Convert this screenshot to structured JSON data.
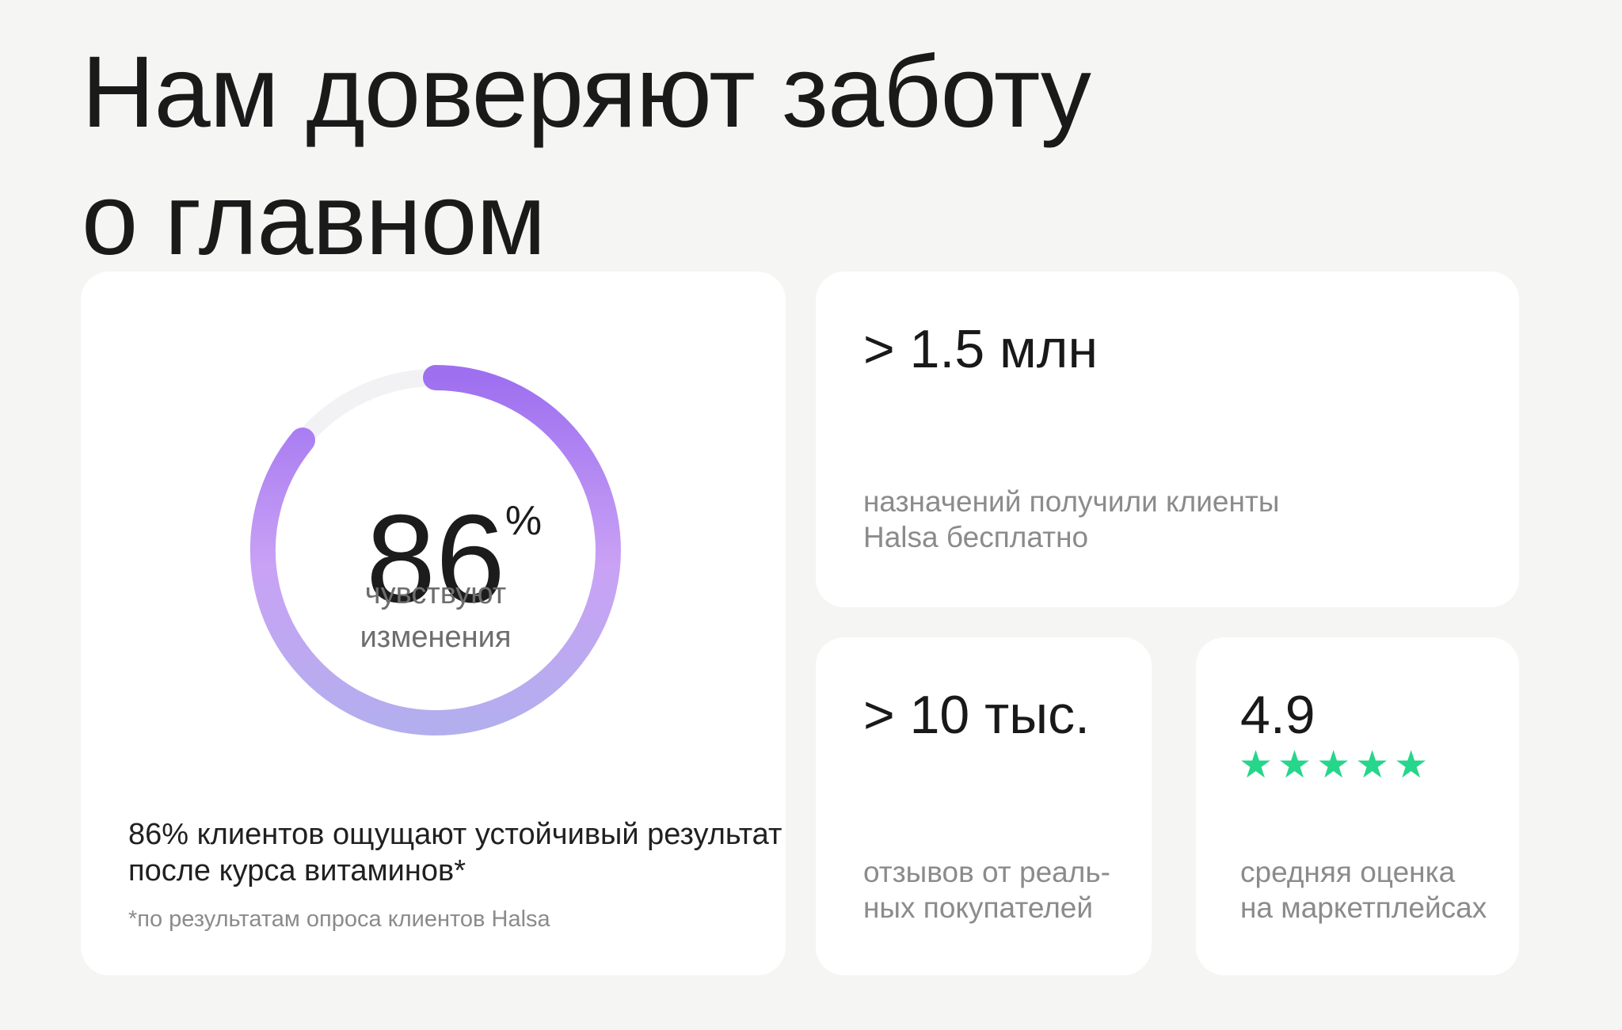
{
  "header": {
    "title_line1": "Нам доверяют заботу",
    "title_line2": "о главном"
  },
  "ring_card": {
    "ring_percent": 86,
    "percent_value": "86",
    "percent_sign": "%",
    "caption_line1": "чувствуют",
    "caption_line2": "изменения",
    "description_line1": "86% клиентов ощущают устойчивый результат",
    "description_line2": "после курса витаминов*",
    "footnote": "*по результатам опроса клиентов Halsa",
    "colors": {
      "track": "#f2f1f4",
      "gradient_top": "#9e70f0",
      "gradient_mid": "#c9a2f5",
      "gradient_bottom": "#b3aeee"
    }
  },
  "prescriptions_card": {
    "value": "> 1.5 млн",
    "caption_line1": "назначений получили клиенты",
    "caption_line2": "Halsa бесплатно"
  },
  "reviews_card": {
    "value": "> 10 тыс.",
    "caption_line1": "отзывов от реаль-",
    "caption_line2": "ных покупателей"
  },
  "rating_card": {
    "value": "4.9",
    "stars": "★★★★★",
    "star_color": "#26d68a",
    "caption_line1": "средняя оценка",
    "caption_line2": "на маркетплейсах"
  }
}
